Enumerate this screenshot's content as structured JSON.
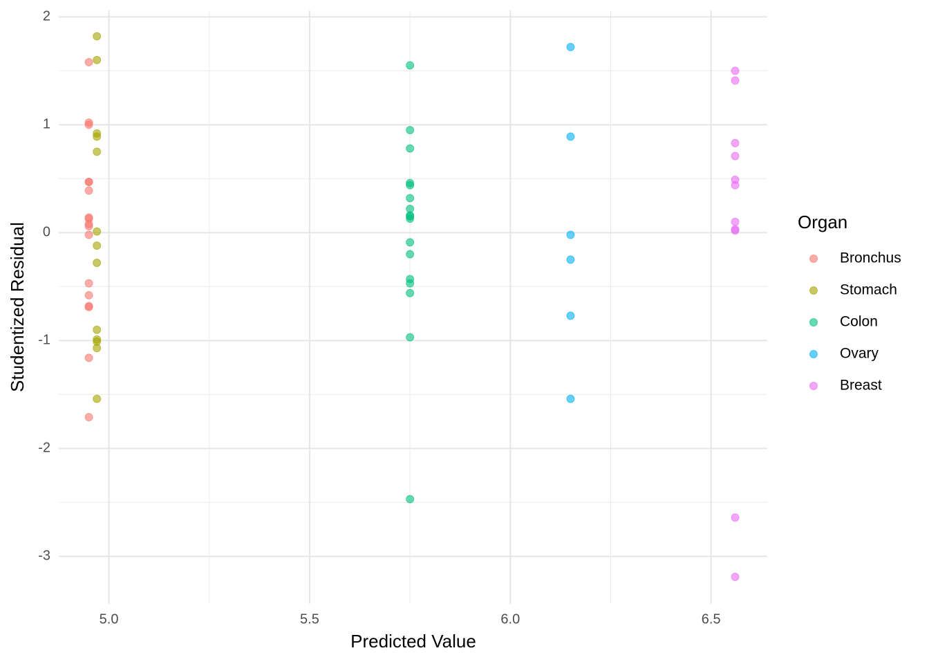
{
  "chart_data": {
    "type": "scatter",
    "x_label": "Predicted Value",
    "y_label": "Studentized Residual",
    "legend_title": "Organ",
    "xlim": [
      4.875,
      6.64
    ],
    "ylim": [
      -3.44,
      2.06
    ],
    "xticks": [
      {
        "value": 5.0,
        "label": "5.0"
      },
      5.5,
      {
        "value": 6.0,
        "label": "6.0"
      },
      6.5
    ],
    "yticks": [
      2,
      1,
      0,
      -1,
      -2,
      -3
    ],
    "x_minor_ticks": [
      5.25,
      5.75,
      6.25
    ],
    "y_minor_ticks": [
      1.5,
      0.5,
      -0.5,
      -1.5,
      -2.5
    ],
    "grid": true,
    "legend_position": "right",
    "opacity": 0.6,
    "series": [
      {
        "name": "Bronchus",
        "color": "#F8766D",
        "x": [
          4.95,
          4.95,
          4.95,
          4.95,
          4.95,
          4.95,
          4.95,
          4.95,
          4.95,
          4.95,
          4.95,
          4.95,
          4.95,
          4.95,
          4.95,
          4.95,
          4.95
        ],
        "values": [
          1.58,
          1.02,
          1.0,
          0.47,
          0.47,
          0.39,
          0.14,
          0.13,
          0.08,
          0.06,
          -0.02,
          -0.47,
          -0.58,
          -0.68,
          -0.69,
          -1.16,
          -1.71
        ]
      },
      {
        "name": "Stomach",
        "color": "#A3A500",
        "x": [
          4.97,
          4.97,
          4.97,
          4.97,
          4.97,
          4.97,
          4.97,
          4.97,
          4.97,
          4.97,
          4.97,
          4.97,
          4.97
        ],
        "values": [
          1.82,
          1.6,
          0.92,
          0.89,
          0.75,
          0.01,
          -0.12,
          -0.28,
          -0.9,
          -0.99,
          -1.01,
          -1.07,
          -1.54
        ]
      },
      {
        "name": "Colon",
        "color": "#00BF7D",
        "x": [
          5.75,
          5.75,
          5.75,
          5.75,
          5.75,
          5.75,
          5.75,
          5.75,
          5.75,
          5.75,
          5.75,
          5.75,
          5.75,
          5.75,
          5.75,
          5.75,
          5.75
        ],
        "values": [
          1.55,
          0.95,
          0.78,
          0.46,
          0.44,
          0.32,
          0.22,
          0.16,
          0.15,
          0.13,
          -0.09,
          -0.2,
          -0.43,
          -0.47,
          -0.56,
          -0.97,
          -2.47
        ]
      },
      {
        "name": "Ovary",
        "color": "#00B0F6",
        "x": [
          6.15,
          6.15,
          6.15,
          6.15,
          6.15,
          6.15
        ],
        "values": [
          1.72,
          0.89,
          -0.02,
          -0.25,
          -0.77,
          -1.54
        ]
      },
      {
        "name": "Breast",
        "color": "#E76BF3",
        "x": [
          6.56,
          6.56,
          6.56,
          6.56,
          6.56,
          6.56,
          6.56,
          6.56,
          6.56,
          6.56,
          6.56
        ],
        "values": [
          1.5,
          1.41,
          0.83,
          0.71,
          0.49,
          0.44,
          0.1,
          0.03,
          0.02,
          -2.64,
          -3.19
        ]
      }
    ]
  }
}
